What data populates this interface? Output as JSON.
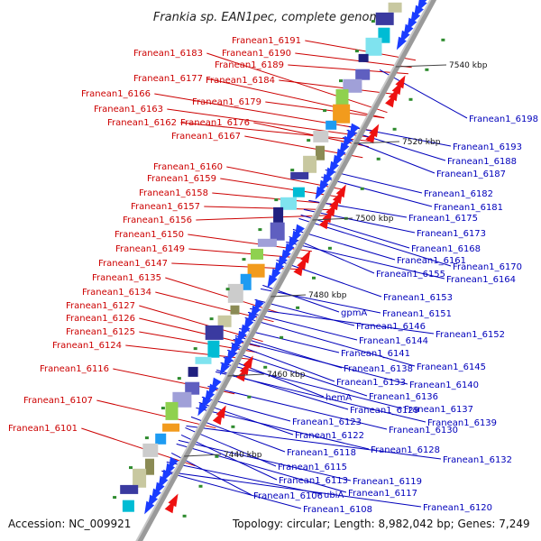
{
  "title": "Frankia sp. EAN1pec, complete genome",
  "footer": {
    "accession": "Accession: NC_009921",
    "summary": "Topology: circular; Length: 8,982,042 bp; Genes: 7,249"
  },
  "colors": {
    "left_label": "#cc0000",
    "right_label": "#0000bb",
    "backbone": "#9a9a9a",
    "forward_arrow": "#1a3cff",
    "reverse_arrow": "#ee1111"
  },
  "kbp_markers": [
    "7540 kbp",
    "7520 kbp",
    "7500 kbp",
    "7480 kbp",
    "7460 kbp",
    "7440 kbp"
  ],
  "left_labels": [
    "Franean1_6191",
    "Franean1_6190",
    "Franean1_6183",
    "Franean1_6189",
    "Franean1_6177",
    "Franean1_6184",
    "Franean1_6166",
    "Franean1_6179",
    "Franean1_6163",
    "Franean1_6162",
    "Franean1_6176",
    "Franean1_6167",
    "Franean1_6160",
    "Franean1_6159",
    "Franean1_6158",
    "Franean1_6157",
    "Franean1_6156",
    "Franean1_6150",
    "Franean1_6149",
    "Franean1_6147",
    "Franean1_6135",
    "Franean1_6134",
    "Franean1_6127",
    "Franean1_6126",
    "Franean1_6125",
    "Franean1_6124",
    "Franean1_6116",
    "Franean1_6107",
    "Franean1_6101"
  ],
  "right_labels": [
    "Franean1_6198",
    "Franean1_6193",
    "Franean1_6188",
    "Franean1_6187",
    "Franean1_6182",
    "Franean1_6181",
    "Franean1_6175",
    "Franean1_6173",
    "Franean1_6168",
    "Franean1_6161",
    "Franean1_6170",
    "Franean1_6155",
    "Franean1_6164",
    "Franean1_6153",
    "gpmA",
    "Franean1_6151",
    "Franean1_6146",
    "Franean1_6152",
    "Franean1_6144",
    "Franean1_6141",
    "Franean1_6145",
    "Franean1_6138",
    "Franean1_6133",
    "Franean1_6140",
    "Franean1_6136",
    "hemA",
    "Franean1_6137",
    "Franean1_6129",
    "Franean1_6139",
    "Franean1_6123",
    "Franean1_6130",
    "Franean1_6122",
    "Franean1_6128",
    "Franean1_6118",
    "Franean1_6132",
    "Franean1_6115",
    "Franean1_6119",
    "Franean1_6113",
    "Franean1_6117",
    "ubiA",
    "Franean1_6106",
    "Franean1_6120",
    "Franean1_6108"
  ]
}
